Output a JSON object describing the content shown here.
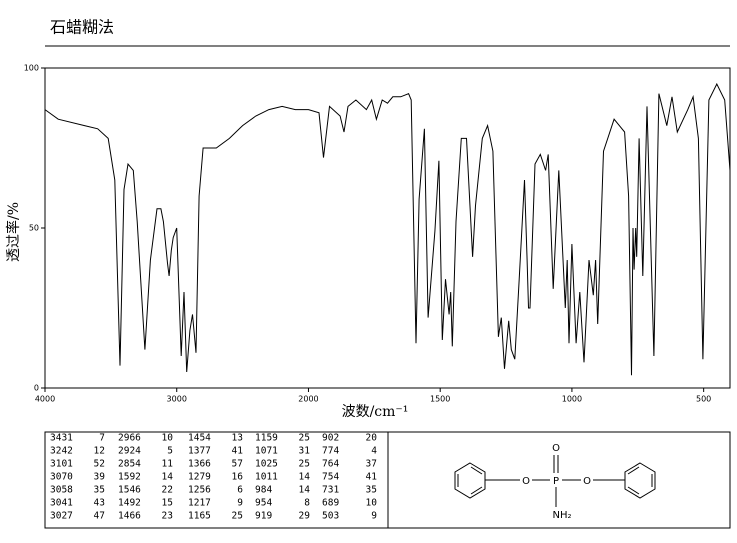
{
  "chart_data": {
    "type": "line",
    "title": "石蜡糊法",
    "xlabel": "波数/cm⁻¹",
    "ylabel": "透过率/%",
    "xlim": [
      4000,
      400
    ],
    "ylim": [
      0,
      100
    ],
    "xticks": [
      4000,
      3000,
      2000,
      1500,
      1000,
      500
    ],
    "yticks": [
      0,
      50,
      100
    ],
    "color": "#000000",
    "x": [
      4000,
      3900,
      3700,
      3600,
      3520,
      3470,
      3431,
      3400,
      3370,
      3330,
      3300,
      3242,
      3200,
      3150,
      3120,
      3101,
      3070,
      3058,
      3041,
      3027,
      3000,
      2966,
      2945,
      2924,
      2900,
      2880,
      2854,
      2830,
      2800,
      2700,
      2600,
      2500,
      2400,
      2300,
      2200,
      2100,
      2000,
      1960,
      1943,
      1920,
      1880,
      1865,
      1850,
      1820,
      1780,
      1760,
      1742,
      1720,
      1700,
      1680,
      1650,
      1620,
      1610,
      1592,
      1580,
      1560,
      1546,
      1520,
      1505,
      1492,
      1480,
      1466,
      1460,
      1454,
      1440,
      1420,
      1400,
      1377,
      1366,
      1340,
      1320,
      1300,
      1279,
      1268,
      1256,
      1240,
      1230,
      1217,
      1200,
      1180,
      1170,
      1165,
      1159,
      1140,
      1120,
      1100,
      1090,
      1071,
      1050,
      1025,
      1018,
      1011,
      1000,
      984,
      970,
      954,
      935,
      919,
      910,
      902,
      880,
      840,
      800,
      785,
      774,
      768,
      764,
      758,
      754,
      745,
      731,
      715,
      689,
      670,
      640,
      620,
      600,
      560,
      540,
      520,
      503,
      480,
      450,
      420,
      400
    ],
    "values": [
      87,
      84,
      82,
      81,
      78,
      65,
      7,
      62,
      70,
      68,
      52,
      12,
      40,
      56,
      56,
      52,
      39,
      35,
      43,
      47,
      50,
      10,
      30,
      5,
      18,
      23,
      11,
      60,
      75,
      75,
      78,
      82,
      85,
      87,
      88,
      87,
      87,
      86,
      72,
      88,
      85,
      80,
      88,
      90,
      87,
      90,
      84,
      90,
      89,
      91,
      91,
      92,
      90,
      14,
      59,
      81,
      22,
      49,
      71,
      15,
      34,
      23,
      30,
      13,
      52,
      78,
      78,
      41,
      57,
      78,
      82,
      74,
      16,
      22,
      6,
      21,
      12,
      9,
      34,
      65,
      40,
      25,
      25,
      70,
      73,
      68,
      73,
      31,
      68,
      25,
      40,
      14,
      45,
      14,
      30,
      8,
      40,
      29,
      40,
      20,
      74,
      84,
      80,
      60,
      4,
      50,
      37,
      50,
      41,
      78,
      35,
      88,
      10,
      92,
      82,
      91,
      80,
      87,
      91,
      78,
      9,
      90,
      95,
      90,
      68
    ]
  },
  "peak_table": {
    "columns": [
      [
        [
          3431,
          7
        ],
        [
          3242,
          12
        ],
        [
          3101,
          52
        ],
        [
          3070,
          39
        ],
        [
          3058,
          35
        ],
        [
          3041,
          43
        ],
        [
          3027,
          47
        ]
      ],
      [
        [
          2966,
          10
        ],
        [
          2924,
          5
        ],
        [
          2854,
          11
        ],
        [
          1592,
          14
        ],
        [
          1546,
          22
        ],
        [
          1492,
          15
        ],
        [
          1466,
          23
        ]
      ],
      [
        [
          1454,
          13
        ],
        [
          1377,
          41
        ],
        [
          1366,
          57
        ],
        [
          1279,
          16
        ],
        [
          1256,
          6
        ],
        [
          1217,
          9
        ],
        [
          1165,
          25
        ]
      ],
      [
        [
          1159,
          25
        ],
        [
          1071,
          31
        ],
        [
          1025,
          25
        ],
        [
          1011,
          14
        ],
        [
          984,
          14
        ],
        [
          954,
          8
        ],
        [
          919,
          29
        ]
      ],
      [
        [
          902,
          20
        ],
        [
          774,
          4
        ],
        [
          764,
          37
        ],
        [
          754,
          41
        ],
        [
          731,
          35
        ],
        [
          689,
          10
        ],
        [
          503,
          9
        ]
      ]
    ]
  },
  "structure": {
    "atoms": [
      "O",
      "O",
      "P",
      "O",
      "NH₂"
    ]
  }
}
